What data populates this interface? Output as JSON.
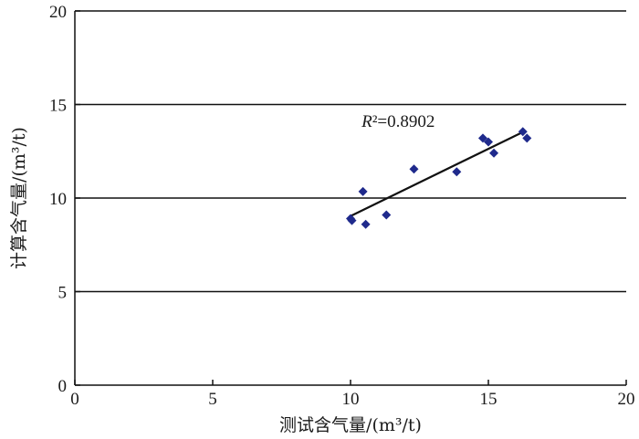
{
  "chart_data": {
    "type": "scatter",
    "xlabel": "测试含气量/(m³/t)",
    "ylabel": "计算含气量/(m³/t)",
    "xlim": [
      0,
      20
    ],
    "ylim": [
      0,
      20
    ],
    "xticks": [
      "0",
      "5",
      "10",
      "15",
      "20"
    ],
    "yticks": [
      "0",
      "5",
      "10",
      "15",
      "20"
    ],
    "grid": "horizontal",
    "point_color": "#1f2a8c",
    "points": [
      {
        "x": 10.0,
        "y": 8.9
      },
      {
        "x": 10.05,
        "y": 8.8
      },
      {
        "x": 10.45,
        "y": 10.35
      },
      {
        "x": 10.55,
        "y": 8.6
      },
      {
        "x": 11.3,
        "y": 9.1
      },
      {
        "x": 12.3,
        "y": 11.55
      },
      {
        "x": 13.85,
        "y": 11.4
      },
      {
        "x": 14.8,
        "y": 13.2
      },
      {
        "x": 15.0,
        "y": 13.0
      },
      {
        "x": 15.2,
        "y": 12.4
      },
      {
        "x": 16.25,
        "y": 13.55
      },
      {
        "x": 16.4,
        "y": 13.2
      }
    ],
    "trendline": {
      "x": [
        9.95,
        16.35
      ],
      "y": [
        9.0,
        13.6
      ]
    },
    "annotation": {
      "prefix": "R",
      "rest": "²=0.8902",
      "x": 10.4,
      "y": 13.8
    }
  }
}
